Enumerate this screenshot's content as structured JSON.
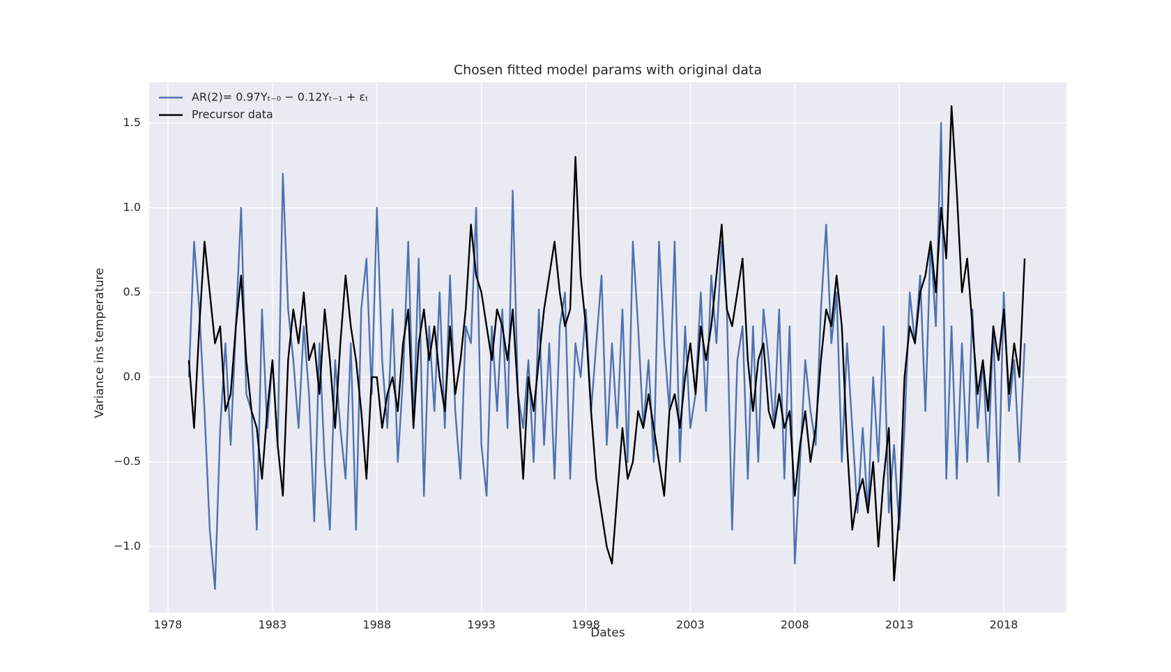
{
  "chart_data": {
    "type": "line",
    "title": "Chosen fitted model params with original data",
    "xlabel": "Dates",
    "ylabel": "Variance ins temperature",
    "background": "#eaeaf2",
    "grid": true,
    "legend": "upper left",
    "xlim": [
      1977.1,
      2021.0
    ],
    "ylim": [
      -1.39,
      1.74
    ],
    "xticks": [
      1978,
      1983,
      1988,
      1993,
      1998,
      2003,
      2008,
      2013,
      2018
    ],
    "yticks": [
      {
        "value": -1.0,
        "label": "−1.0"
      },
      {
        "value": -0.5,
        "label": "−0.5"
      },
      {
        "value": 0,
        "label": "0.0"
      },
      0.5,
      {
        "value": 1.0,
        "label": "1.0"
      },
      {
        "value": 1.5,
        "label": "1.5"
      }
    ],
    "x": [
      1979,
      1979.25,
      1979.5,
      1979.75,
      1980,
      1980.25,
      1980.5,
      1980.75,
      1981,
      1981.25,
      1981.5,
      1981.75,
      1982,
      1982.25,
      1982.5,
      1982.75,
      1983,
      1983.25,
      1983.5,
      1983.75,
      1984,
      1984.25,
      1984.5,
      1984.75,
      1985,
      1985.25,
      1985.5,
      1985.75,
      1986,
      1986.25,
      1986.5,
      1986.75,
      1987,
      1987.25,
      1987.5,
      1987.75,
      1988,
      1988.25,
      1988.5,
      1988.75,
      1989,
      1989.25,
      1989.5,
      1989.75,
      1990,
      1990.25,
      1990.5,
      1990.75,
      1991,
      1991.25,
      1991.5,
      1991.75,
      1992,
      1992.25,
      1992.5,
      1992.75,
      1993,
      1993.25,
      1993.5,
      1993.75,
      1994,
      1994.25,
      1994.5,
      1994.75,
      1995,
      1995.25,
      1995.5,
      1995.75,
      1996,
      1996.25,
      1996.5,
      1996.75,
      1997,
      1997.25,
      1997.5,
      1997.75,
      1998,
      1998.25,
      1998.5,
      1998.75,
      1999,
      1999.25,
      1999.5,
      1999.75,
      2000,
      2000.25,
      2000.5,
      2000.75,
      2001,
      2001.25,
      2001.5,
      2001.75,
      2002,
      2002.25,
      2002.5,
      2002.75,
      2003,
      2003.25,
      2003.5,
      2003.75,
      2004,
      2004.25,
      2004.5,
      2004.75,
      2005,
      2005.25,
      2005.5,
      2005.75,
      2006,
      2006.25,
      2006.5,
      2006.75,
      2007,
      2007.25,
      2007.5,
      2007.75,
      2008,
      2008.25,
      2008.5,
      2008.75,
      2009,
      2009.25,
      2009.5,
      2009.75,
      2010,
      2010.25,
      2010.5,
      2010.75,
      2011,
      2011.25,
      2011.5,
      2011.75,
      2012,
      2012.25,
      2012.5,
      2012.75,
      2013,
      2013.25,
      2013.5,
      2013.75,
      2014,
      2014.25,
      2014.5,
      2014.75,
      2015,
      2015.25,
      2015.5,
      2015.75,
      2016,
      2016.25,
      2016.5,
      2016.75,
      2017,
      2017.25,
      2017.5,
      2017.75,
      2018,
      2018.25,
      2018.5,
      2018.75,
      2019
    ],
    "series": [
      {
        "name": "AR(2)= 0.97Yₜ₋₀ − 0.12Yₜ₋₁ + εₜ",
        "color": "#4c72b0",
        "values": [
          0.0,
          0.8,
          0.4,
          -0.2,
          -0.9,
          -1.25,
          -0.3,
          0.2,
          -0.4,
          0.3,
          1.0,
          -0.1,
          -0.2,
          -0.9,
          0.4,
          -0.3,
          0.1,
          -0.4,
          1.2,
          0.4,
          0.1,
          -0.3,
          0.3,
          -0.1,
          -0.85,
          0.2,
          -0.5,
          -0.9,
          0.1,
          -0.3,
          -0.6,
          0.2,
          -0.9,
          0.4,
          0.7,
          -0.1,
          1.0,
          0.1,
          -0.3,
          0.4,
          -0.5,
          0.0,
          0.8,
          -0.3,
          0.7,
          -0.7,
          0.3,
          -0.2,
          0.5,
          -0.3,
          0.6,
          -0.2,
          -0.6,
          0.3,
          0.2,
          1.0,
          -0.4,
          -0.7,
          0.3,
          -0.2,
          0.4,
          -0.3,
          1.1,
          -0.1,
          -0.3,
          0.1,
          -0.5,
          0.4,
          -0.4,
          0.2,
          -0.6,
          0.3,
          0.5,
          -0.6,
          0.2,
          0.0,
          0.4,
          -0.2,
          0.2,
          0.6,
          -0.4,
          0.2,
          -0.3,
          0.4,
          -0.5,
          0.8,
          0.3,
          -0.3,
          0.1,
          -0.5,
          0.8,
          0.2,
          -0.2,
          0.8,
          -0.5,
          0.3,
          -0.3,
          -0.1,
          0.5,
          -0.2,
          0.6,
          0.2,
          0.8,
          0.4,
          -0.9,
          0.1,
          0.3,
          -0.6,
          0.3,
          -0.5,
          0.4,
          0.1,
          -0.3,
          0.4,
          -0.6,
          0.3,
          -1.1,
          -0.5,
          0.1,
          -0.2,
          -0.4,
          0.4,
          0.9,
          0.2,
          0.5,
          -0.5,
          0.2,
          -0.3,
          -0.8,
          -0.3,
          -0.8,
          0.0,
          -0.5,
          0.3,
          -0.8,
          -0.4,
          -0.9,
          -0.3,
          0.5,
          0.2,
          0.6,
          -0.2,
          0.8,
          0.3,
          1.5,
          -0.6,
          0.3,
          -0.6,
          0.2,
          -0.5,
          0.4,
          -0.3,
          0.1,
          -0.5,
          0.3,
          -0.7,
          0.5,
          -0.2,
          0.1,
          -0.5,
          0.2
        ]
      },
      {
        "name": "Precursor data",
        "color": "#000000",
        "values": [
          0.1,
          -0.3,
          0.3,
          0.8,
          0.5,
          0.2,
          0.3,
          -0.2,
          -0.1,
          0.3,
          0.6,
          0.1,
          -0.2,
          -0.3,
          -0.6,
          -0.2,
          0.1,
          -0.4,
          -0.7,
          0.1,
          0.4,
          0.2,
          0.5,
          0.1,
          0.2,
          -0.1,
          0.4,
          0.1,
          -0.3,
          0.2,
          0.6,
          0.3,
          0.1,
          -0.2,
          -0.6,
          0.0,
          0.0,
          -0.3,
          -0.1,
          0.0,
          -0.2,
          0.2,
          0.4,
          -0.3,
          0.2,
          0.4,
          0.1,
          0.3,
          0.0,
          -0.2,
          0.3,
          -0.1,
          0.1,
          0.4,
          0.9,
          0.6,
          0.5,
          0.3,
          0.1,
          0.4,
          0.3,
          0.1,
          0.4,
          -0.1,
          -0.6,
          0.0,
          -0.2,
          0.1,
          0.4,
          0.6,
          0.8,
          0.5,
          0.3,
          0.4,
          1.3,
          0.6,
          0.3,
          -0.2,
          -0.6,
          -0.8,
          -1.0,
          -1.1,
          -0.7,
          -0.3,
          -0.6,
          -0.5,
          -0.2,
          -0.3,
          -0.1,
          -0.3,
          -0.5,
          -0.7,
          -0.2,
          -0.1,
          -0.3,
          0.0,
          0.2,
          -0.1,
          0.3,
          0.1,
          0.3,
          0.6,
          0.9,
          0.4,
          0.3,
          0.5,
          0.7,
          0.1,
          -0.2,
          0.1,
          0.2,
          -0.2,
          -0.3,
          -0.1,
          -0.3,
          -0.2,
          -0.7,
          -0.4,
          -0.2,
          -0.5,
          -0.3,
          0.1,
          0.4,
          0.3,
          0.6,
          0.3,
          -0.4,
          -0.9,
          -0.7,
          -0.6,
          -0.8,
          -0.5,
          -1.0,
          -0.6,
          -0.3,
          -1.2,
          -0.8,
          0.0,
          0.3,
          0.2,
          0.5,
          0.6,
          0.8,
          0.5,
          1.0,
          0.7,
          1.6,
          1.1,
          0.5,
          0.7,
          0.3,
          -0.1,
          0.1,
          -0.2,
          0.3,
          0.1,
          0.4,
          -0.1,
          0.2,
          0.0,
          0.7
        ]
      }
    ]
  }
}
